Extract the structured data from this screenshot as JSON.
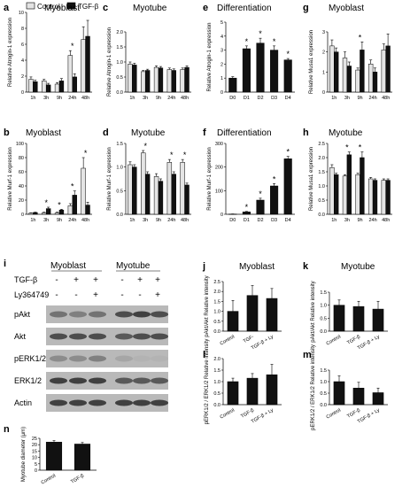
{
  "legend": {
    "control": "Control",
    "tgf": "TGF-β"
  },
  "chart_data": [
    {
      "id": "a",
      "type": "bar",
      "label": "a",
      "title": "Myoblast",
      "ylabel": "Relative Atrogin-1 expression",
      "ylim": [
        0,
        10
      ],
      "yticks": [
        0,
        2,
        4,
        6,
        8,
        10
      ],
      "categories": [
        "1h",
        "3h",
        "9h",
        "24h",
        "48h"
      ],
      "series": [
        {
          "name": "Control",
          "values": [
            1.6,
            1.4,
            1.0,
            4.6,
            6.6
          ],
          "err": [
            0.3,
            0.2,
            0.2,
            0.6,
            1.6
          ]
        },
        {
          "name": "TGF-β",
          "values": [
            1.3,
            0.9,
            1.4,
            1.9,
            7.0
          ],
          "err": [
            0.2,
            0.2,
            0.3,
            0.4,
            2.0
          ]
        }
      ],
      "sig": [
        "",
        "",
        "",
        "*",
        ""
      ],
      "sigpos": [
        0,
        0,
        0,
        0,
        0
      ]
    },
    {
      "id": "c",
      "type": "bar",
      "label": "c",
      "title": "Myotube",
      "ylabel": "Relative Atrogin-1 expression",
      "ylim": [
        0,
        2.0
      ],
      "yticks": [
        0,
        0.5,
        1.0,
        1.5,
        2.0
      ],
      "categories": [
        "1h",
        "3h",
        "9h",
        "24h",
        "48h"
      ],
      "series": [
        {
          "name": "Control",
          "values": [
            0.93,
            0.68,
            0.82,
            0.75,
            0.75
          ],
          "err": [
            0.07,
            0.04,
            0.05,
            0.05,
            0.05
          ]
        },
        {
          "name": "TGF-β",
          "values": [
            0.9,
            0.72,
            0.8,
            0.72,
            0.82
          ],
          "err": [
            0.06,
            0.04,
            0.05,
            0.05,
            0.05
          ]
        }
      ],
      "sig": [
        "",
        "",
        "",
        "",
        ""
      ],
      "sigpos": [
        0,
        0,
        0,
        0,
        0
      ]
    },
    {
      "id": "e",
      "type": "bar",
      "label": "e",
      "title": "Differentiation",
      "ylabel": "Relative Atrogin-1 expression",
      "ylim": [
        0,
        5
      ],
      "yticks": [
        0,
        1,
        2,
        3,
        4,
        5
      ],
      "categories": [
        "D0",
        "D1",
        "D2",
        "D3",
        "D4"
      ],
      "series": [
        {
          "name": "",
          "values": [
            1.0,
            3.1,
            3.5,
            3.0,
            2.3
          ],
          "err": [
            0.1,
            0.2,
            0.35,
            0.3,
            0.1
          ]
        }
      ],
      "sig": [
        "",
        "*",
        "*",
        "*",
        "*"
      ]
    },
    {
      "id": "g",
      "type": "bar",
      "label": "g",
      "title": "Myoblast",
      "ylabel": "Relative Musa1 expression",
      "ylim": [
        0,
        3
      ],
      "yticks": [
        0,
        1,
        2,
        3
      ],
      "categories": [
        "1h",
        "3h",
        "9h",
        "24h",
        "48h"
      ],
      "series": [
        {
          "name": "Control",
          "values": [
            2.3,
            1.7,
            1.1,
            1.4,
            2.1
          ],
          "err": [
            0.3,
            0.3,
            0.1,
            0.2,
            0.3
          ]
        },
        {
          "name": "TGF-β",
          "values": [
            2.0,
            1.3,
            2.1,
            1.0,
            2.3
          ],
          "err": [
            0.2,
            0.2,
            0.4,
            0.2,
            0.6
          ]
        }
      ],
      "sig": [
        "",
        "",
        "*",
        "",
        ""
      ],
      "sigpos": [
        0,
        0,
        0,
        0,
        0
      ]
    },
    {
      "id": "b",
      "type": "bar",
      "label": "b",
      "title": "Myoblast",
      "ylabel": "Relative Murf-1 expression",
      "ylim": [
        0,
        100
      ],
      "yticks": [
        0,
        20,
        40,
        60,
        80,
        100
      ],
      "categories": [
        "1h",
        "3h",
        "9h",
        "24h",
        "48h"
      ],
      "series": [
        {
          "name": "Control",
          "values": [
            1.5,
            2,
            2,
            12,
            65
          ],
          "err": [
            0.5,
            1,
            1,
            3,
            15
          ]
        },
        {
          "name": "TGF-β",
          "values": [
            2.5,
            8,
            6,
            27,
            13
          ],
          "err": [
            0.5,
            2,
            1,
            6,
            4
          ]
        }
      ],
      "sig": [
        "",
        "*",
        "*",
        "*",
        "*"
      ],
      "sigpos": [
        0,
        0,
        0,
        0,
        0
      ]
    },
    {
      "id": "d",
      "type": "bar",
      "label": "d",
      "title": "Myotube",
      "ylabel": "Relative Murf-1 expression",
      "ylim": [
        0,
        1.5
      ],
      "yticks": [
        0,
        0.5,
        1.0,
        1.5
      ],
      "categories": [
        "1h",
        "3h",
        "9h",
        "24h",
        "48h"
      ],
      "series": [
        {
          "name": "Control",
          "values": [
            1.05,
            1.3,
            0.8,
            1.1,
            1.1
          ],
          "err": [
            0.06,
            0.05,
            0.06,
            0.06,
            0.06
          ]
        },
        {
          "name": "TGF-β",
          "values": [
            1.0,
            0.85,
            0.7,
            0.85,
            0.62
          ],
          "err": [
            0.05,
            0.05,
            0.05,
            0.05,
            0.04
          ]
        }
      ],
      "sig": [
        "",
        "*",
        "",
        "*",
        "*"
      ],
      "sigpos": [
        0,
        0,
        0,
        0,
        0
      ]
    },
    {
      "id": "f",
      "type": "bar",
      "label": "f",
      "title": "Differentiation",
      "ylabel": "Relative Murf-1 expression",
      "ylim": [
        0,
        300
      ],
      "yticks": [
        0,
        100,
        200,
        300
      ],
      "categories": [
        "D0",
        "D1",
        "D2",
        "D3",
        "D4"
      ],
      "series": [
        {
          "name": "",
          "values": [
            1,
            10,
            60,
            120,
            235
          ],
          "err": [
            0.5,
            2,
            8,
            10,
            10
          ]
        }
      ],
      "sig": [
        "",
        "*",
        "*",
        "*",
        "*"
      ]
    },
    {
      "id": "h",
      "type": "bar",
      "label": "h",
      "title": "Myotube",
      "ylabel": "Relative Musa1 expression",
      "ylim": [
        0,
        2.5
      ],
      "yticks": [
        0,
        0.5,
        1.0,
        1.5,
        2.0,
        2.5
      ],
      "categories": [
        "1h",
        "3h",
        "9h",
        "24h",
        "48h"
      ],
      "series": [
        {
          "name": "Control",
          "values": [
            1.65,
            1.35,
            1.4,
            1.25,
            1.2
          ],
          "err": [
            0.1,
            0.05,
            0.05,
            0.05,
            0.05
          ]
        },
        {
          "name": "TGF-β",
          "values": [
            1.4,
            2.1,
            2.0,
            1.2,
            1.2
          ],
          "err": [
            0.05,
            0.1,
            0.2,
            0.05,
            0.05
          ]
        }
      ],
      "sig": [
        "",
        "*",
        "*",
        "",
        ""
      ],
      "sigpos": [
        0,
        0,
        0,
        0,
        0
      ]
    },
    {
      "id": "j",
      "type": "bar",
      "label": "j",
      "title": "Myoblast",
      "ylabel": "pAkt/Akt Relative intensity",
      "ylim": [
        0,
        2.5
      ],
      "yticks": [
        0,
        0.5,
        1.0,
        1.5,
        2.0,
        2.5
      ],
      "categories": [
        "Control",
        "TGF-",
        "TGF-β + Ly"
      ],
      "series": [
        {
          "name": "",
          "values": [
            1.0,
            1.8,
            1.65
          ],
          "err": [
            0.55,
            0.5,
            0.5
          ]
        }
      ],
      "sig": [
        "",
        "",
        ""
      ]
    },
    {
      "id": "k",
      "type": "bar",
      "label": "k",
      "title": "Myotube",
      "ylabel": "pAkt/Akt Relative intensity",
      "ylim": [
        0,
        1.5
      ],
      "yticks": [
        0,
        0.5,
        1.0,
        1.5
      ],
      "categories": [
        "Control",
        "TGF-β",
        "TGF-β + Ly"
      ],
      "series": [
        {
          "name": "",
          "values": [
            1.0,
            0.95,
            0.85
          ],
          "err": [
            0.2,
            0.2,
            0.3
          ]
        }
      ],
      "sig": [
        "",
        "",
        ""
      ]
    },
    {
      "id": "l",
      "type": "bar",
      "label": "l",
      "title": "",
      "ylabel": "pERK1/2 / ERK1/2 Relative intensity",
      "ylim": [
        0,
        2.0
      ],
      "yticks": [
        0,
        0.5,
        1.0,
        1.5,
        2.0
      ],
      "categories": [
        "Control",
        "TGF-β",
        "TGF-β + Ly"
      ],
      "series": [
        {
          "name": "",
          "values": [
            1.0,
            1.15,
            1.3
          ],
          "err": [
            0.15,
            0.2,
            0.45
          ]
        }
      ],
      "sig": [
        "",
        "",
        ""
      ]
    },
    {
      "id": "m",
      "type": "bar",
      "label": "m",
      "title": "",
      "ylabel": "pERK1/2 / ERK1/2 Relative intensity",
      "ylim": [
        0,
        1.5
      ],
      "yticks": [
        0,
        0.5,
        1.0,
        1.5
      ],
      "categories": [
        "Control",
        "TGF-β",
        "TGF-β + Ly"
      ],
      "series": [
        {
          "name": "",
          "values": [
            1.0,
            0.72,
            0.52
          ],
          "err": [
            0.25,
            0.25,
            0.2
          ]
        }
      ],
      "sig": [
        "",
        "",
        ""
      ]
    },
    {
      "id": "n",
      "type": "bar",
      "label": "n",
      "title": "",
      "ylabel": "Myotube diameter (μm)",
      "ylim": [
        0,
        25
      ],
      "yticks": [
        0,
        5,
        10,
        15,
        20,
        25
      ],
      "categories": [
        "Control",
        "TGF-β"
      ],
      "series": [
        {
          "name": "",
          "values": [
            22,
            20.5
          ],
          "err": [
            1.2,
            1.2
          ]
        }
      ],
      "sig": [
        "",
        ""
      ]
    }
  ],
  "blot": {
    "label": "i",
    "groups": [
      "Myoblast",
      "Myotube"
    ],
    "rows": [
      {
        "name": "TGF-β",
        "marks": [
          "-",
          "+",
          "+",
          "-",
          "+",
          "+"
        ]
      },
      {
        "name": "Ly364749",
        "marks": [
          "-",
          "-",
          "+",
          "-",
          "-",
          "+"
        ]
      }
    ],
    "bands": [
      "pAkt",
      "Akt",
      "pERK1/2",
      "ERK1/2",
      "Actin"
    ]
  }
}
